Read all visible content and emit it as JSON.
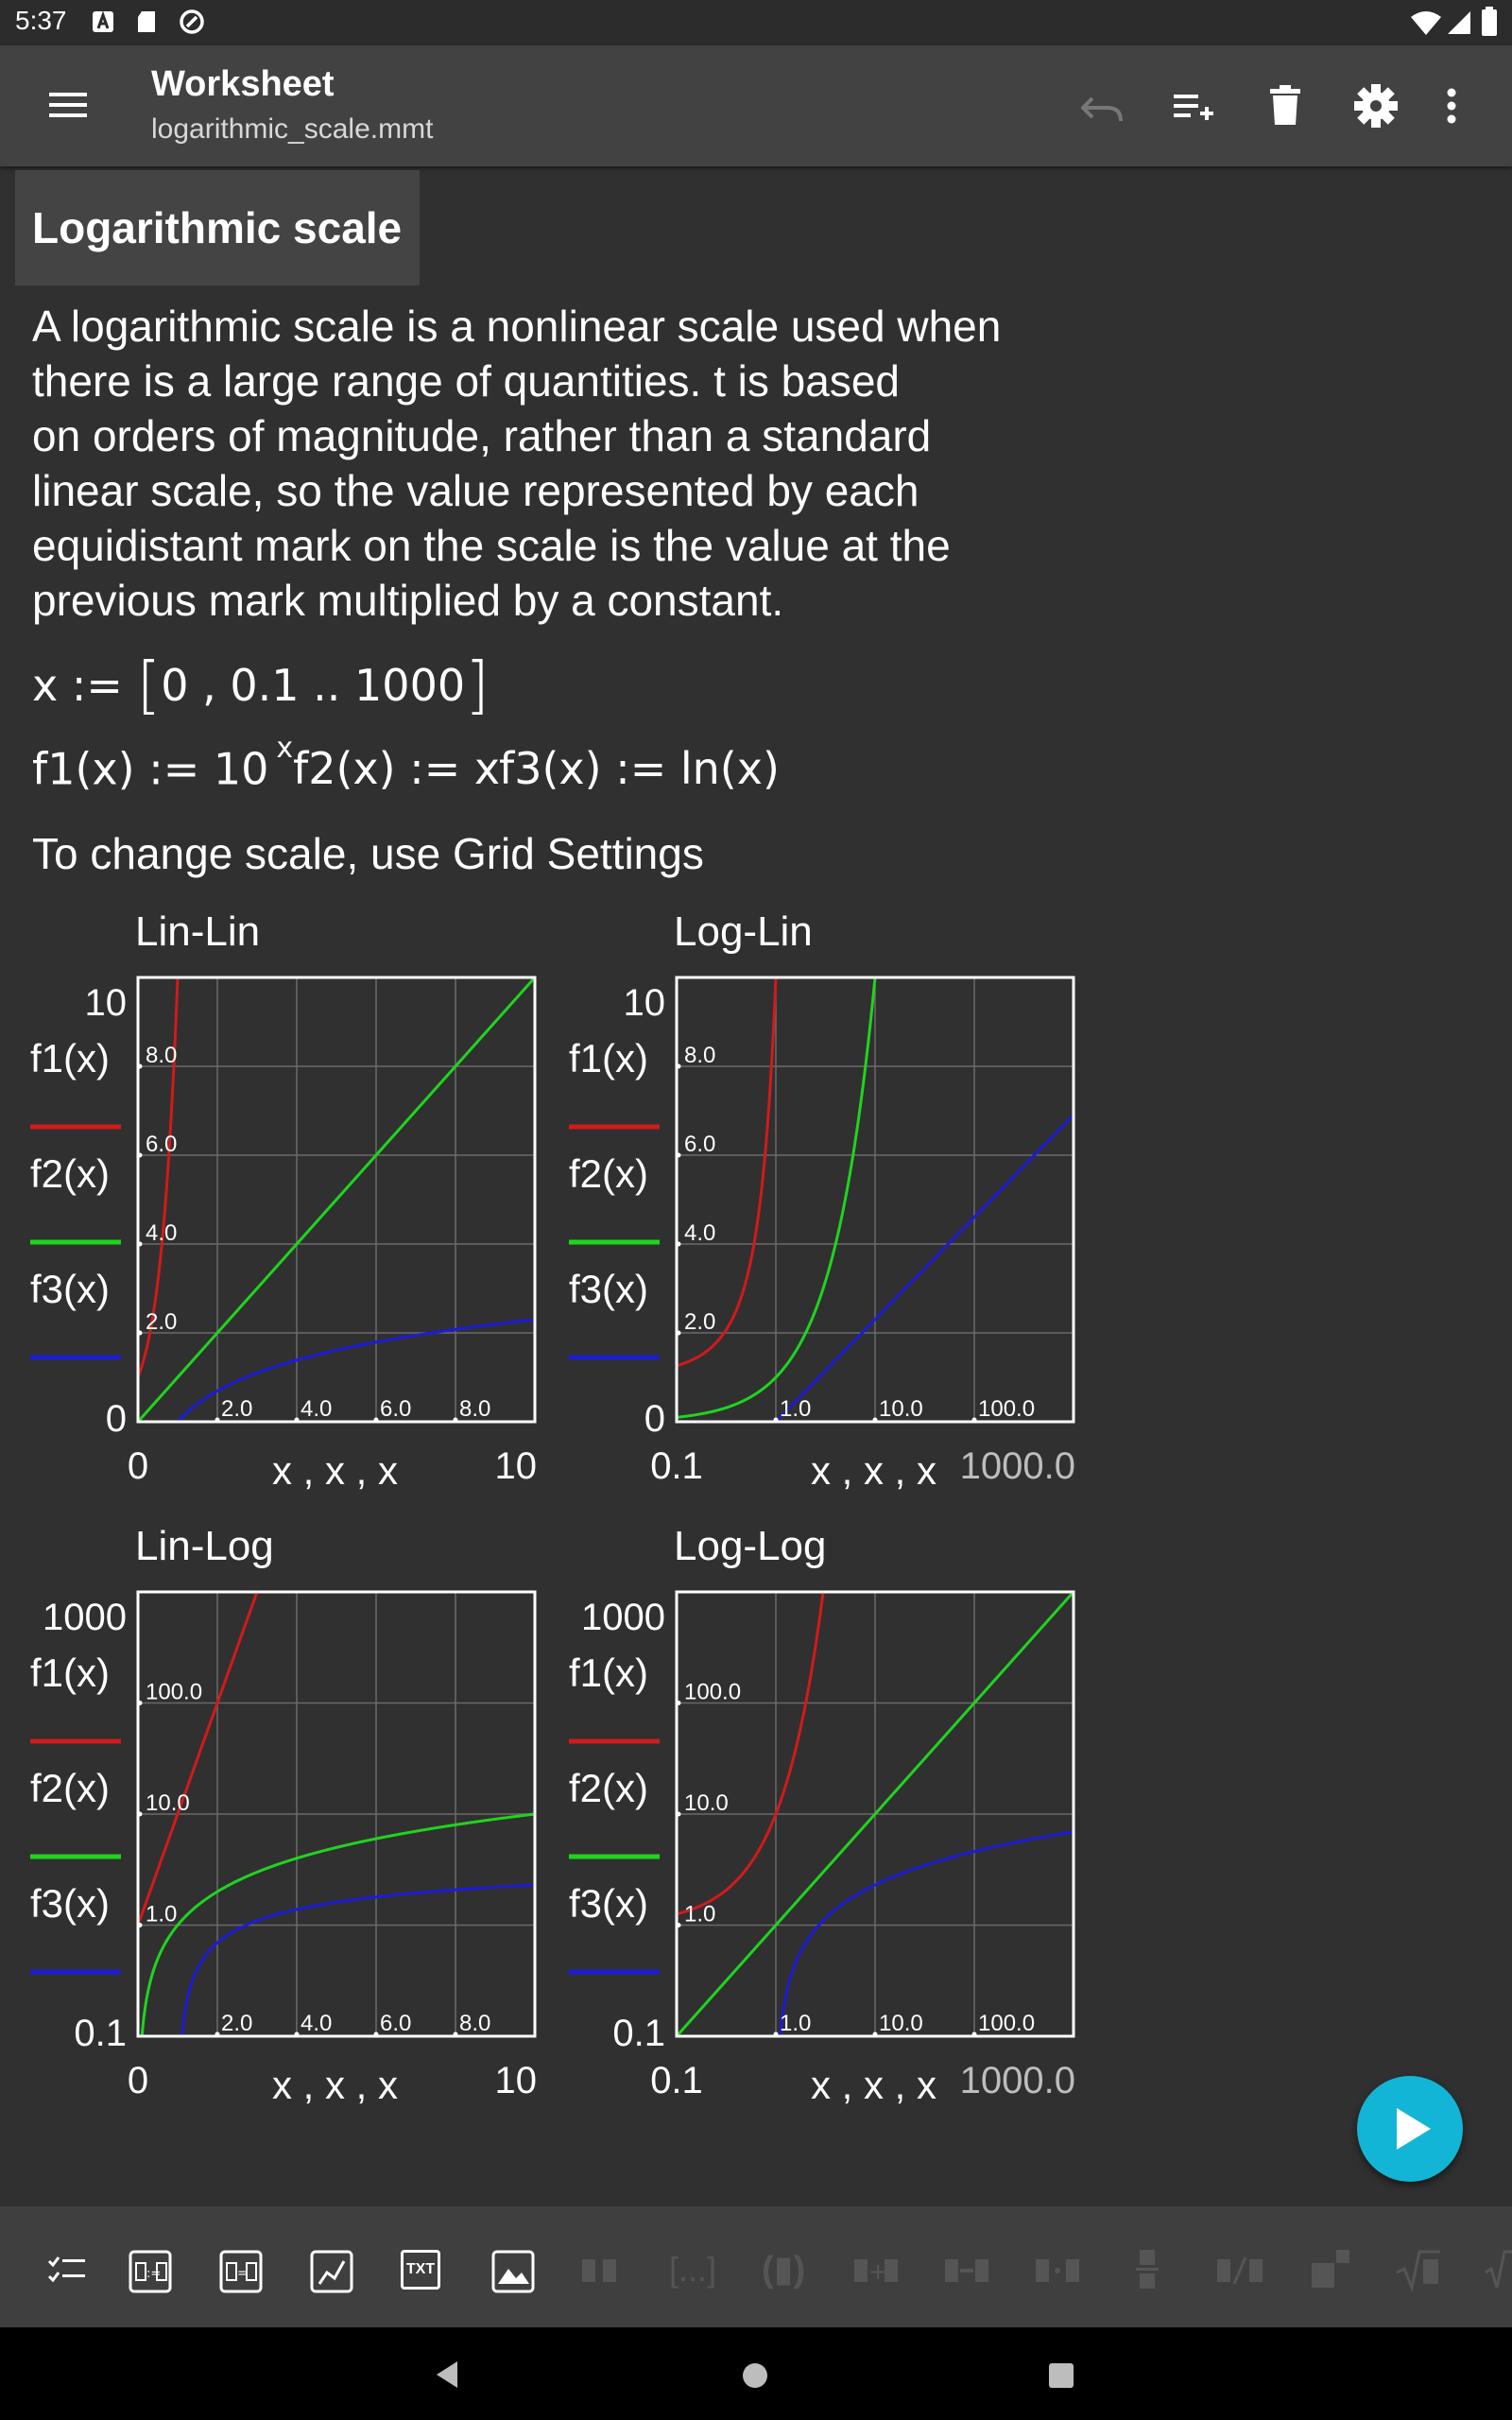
{
  "status_bar": {
    "time": "5:37"
  },
  "app_bar": {
    "title": "Worksheet",
    "subtitle": "logarithmic_scale.mmt",
    "icons": [
      "menu-icon",
      "undo-icon",
      "add-line-icon",
      "delete-icon",
      "settings-icon",
      "more-vert-icon"
    ]
  },
  "section_title": "Logarithmic scale",
  "paragraph": "A logarithmic scale is a nonlinear scale used when\nthere is a large range of quantities. t is based\non orders of magnitude, rather than a standard\nlinear scale, so the value represented by each\nequidistant mark on the scale is the value at the\nprevious mark multiplied by a constant.",
  "formulas": {
    "x_def_lhs": "x :=",
    "x_def_body": "0 , 0.1 .. 1000",
    "f1_lhs": "f1(x) := 10",
    "f1_exp": "x",
    "f2": "f2(x) := x",
    "f3": "f3(x) := ln(x)"
  },
  "hint": "To change scale, use Grid Settings",
  "colors": {
    "f1": "#d21a1a",
    "f2": "#1fd41f",
    "f3": "#1c1cd6",
    "accent": "#13b5d6"
  },
  "legend": [
    "f1(x)",
    "f2(x)",
    "f3(x)"
  ],
  "charts": [
    {
      "title": "Lin-Lin",
      "x_label": "x , x , x",
      "xscale": "linear",
      "yscale": "linear",
      "x_range": [
        0,
        10
      ],
      "y_range": [
        0,
        10
      ],
      "x_min_label": "0",
      "x_max_label": "10",
      "y_min_label": "0",
      "y_max_label": "10",
      "x_ticks": [
        {
          "v": 2,
          "t": "2.0"
        },
        {
          "v": 4,
          "t": "4.0"
        },
        {
          "v": 6,
          "t": "6.0"
        },
        {
          "v": 8,
          "t": "8.0"
        }
      ],
      "y_ticks": [
        {
          "v": 2,
          "t": "2.0"
        },
        {
          "v": 4,
          "t": "4.0"
        },
        {
          "v": 6,
          "t": "6.0"
        },
        {
          "v": 8,
          "t": "8.0"
        }
      ]
    },
    {
      "title": "Log-Lin",
      "x_label": "x , x , x",
      "xscale": "log",
      "yscale": "linear",
      "x_range": [
        0.1,
        1000
      ],
      "y_range": [
        0,
        10
      ],
      "x_min_label": "0.1",
      "x_max_label": "1000.0",
      "y_min_label": "0",
      "y_max_label": "10",
      "x_ticks": [
        {
          "v": 1,
          "t": "1.0"
        },
        {
          "v": 10,
          "t": "10.0"
        },
        {
          "v": 100,
          "t": "100.0"
        }
      ],
      "y_ticks": [
        {
          "v": 2,
          "t": "2.0"
        },
        {
          "v": 4,
          "t": "4.0"
        },
        {
          "v": 6,
          "t": "6.0"
        },
        {
          "v": 8,
          "t": "8.0"
        }
      ]
    },
    {
      "title": "Lin-Log",
      "x_label": "x , x , x",
      "xscale": "linear",
      "yscale": "log",
      "x_range": [
        0,
        10
      ],
      "y_range": [
        0.1,
        1000
      ],
      "x_min_label": "0",
      "x_max_label": "10",
      "y_min_label": "0.1",
      "y_max_label": "1000",
      "x_ticks": [
        {
          "v": 2,
          "t": "2.0"
        },
        {
          "v": 4,
          "t": "4.0"
        },
        {
          "v": 6,
          "t": "6.0"
        },
        {
          "v": 8,
          "t": "8.0"
        }
      ],
      "y_ticks": [
        {
          "v": 1,
          "t": "1.0"
        },
        {
          "v": 10,
          "t": "10.0"
        },
        {
          "v": 100,
          "t": "100.0"
        }
      ]
    },
    {
      "title": "Log-Log",
      "x_label": "x , x , x",
      "xscale": "log",
      "yscale": "log",
      "x_range": [
        0.1,
        1000
      ],
      "y_range": [
        0.1,
        1000
      ],
      "x_min_label": "0.1",
      "x_max_label": "1000.0",
      "y_min_label": "0.1",
      "y_max_label": "1000",
      "x_ticks": [
        {
          "v": 1,
          "t": "1.0"
        },
        {
          "v": 10,
          "t": "10.0"
        },
        {
          "v": 100,
          "t": "100.0"
        }
      ],
      "y_ticks": [
        {
          "v": 1,
          "t": "1.0"
        },
        {
          "v": 10,
          "t": "10.0"
        },
        {
          "v": 100,
          "t": "100.0"
        }
      ]
    }
  ],
  "chart_data": [
    {
      "type": "line",
      "title": "Lin-Lin",
      "xlabel": "x , x , x",
      "xlim": [
        0,
        10
      ],
      "ylim": [
        0,
        10
      ],
      "xscale": "linear",
      "yscale": "linear",
      "grid": true,
      "series": [
        {
          "name": "f1(x)",
          "function": "10^x"
        },
        {
          "name": "f2(x)",
          "function": "x"
        },
        {
          "name": "f3(x)",
          "function": "ln(x)"
        }
      ]
    },
    {
      "type": "line",
      "title": "Log-Lin",
      "xlabel": "x , x , x",
      "xlim": [
        0.1,
        1000
      ],
      "ylim": [
        0,
        10
      ],
      "xscale": "log",
      "yscale": "linear",
      "grid": true,
      "series": [
        {
          "name": "f1(x)",
          "function": "10^x"
        },
        {
          "name": "f2(x)",
          "function": "x"
        },
        {
          "name": "f3(x)",
          "function": "ln(x)"
        }
      ]
    },
    {
      "type": "line",
      "title": "Lin-Log",
      "xlabel": "x , x , x",
      "xlim": [
        0,
        10
      ],
      "ylim": [
        0.1,
        1000
      ],
      "xscale": "linear",
      "yscale": "log",
      "grid": true,
      "series": [
        {
          "name": "f1(x)",
          "function": "10^x"
        },
        {
          "name": "f2(x)",
          "function": "x"
        },
        {
          "name": "f3(x)",
          "function": "ln(x)"
        }
      ]
    },
    {
      "type": "line",
      "title": "Log-Log",
      "xlabel": "x , x , x",
      "xlim": [
        0.1,
        1000
      ],
      "ylim": [
        0.1,
        1000
      ],
      "xscale": "log",
      "yscale": "log",
      "grid": true,
      "series": [
        {
          "name": "f1(x)",
          "function": "10^x"
        },
        {
          "name": "f2(x)",
          "function": "x"
        },
        {
          "name": "f3(x)",
          "function": "ln(x)"
        }
      ]
    }
  ],
  "toolbar": {
    "items": [
      "list-icon",
      "equation-icon",
      "result-icon",
      "plot-icon",
      "text-icon",
      "image-icon",
      "brackets-icon",
      "ellipsis-brackets-icon",
      "parentheses-icon",
      "plus-icon",
      "minus-icon",
      "times-icon",
      "divide-icon",
      "fraction-icon",
      "power-icon",
      "sqrt-icon"
    ],
    "txt_label": "TXT"
  },
  "fab": {
    "icon": "play-icon"
  }
}
